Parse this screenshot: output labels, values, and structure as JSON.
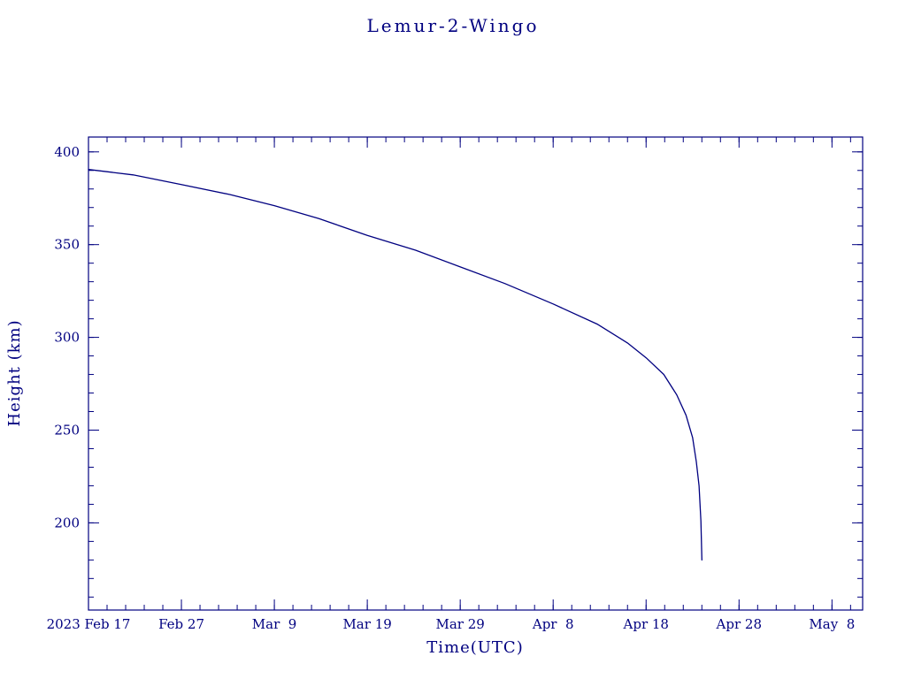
{
  "chart_data": {
    "type": "line",
    "title": "Lemur-2-Wingo",
    "xlabel": "Time(UTC)",
    "ylabel": "Height (km)",
    "line_color": "#000080",
    "axis_color": "#000080",
    "background_color": "#ffffff",
    "legend": "none",
    "grid": "off",
    "x_unit": "days since 2023 Feb 17 (UTC)",
    "xlim": [
      0,
      83.3
    ],
    "ylim": [
      153,
      408
    ],
    "x_ticks": [
      {
        "day": 0,
        "label": "2023 Feb 17"
      },
      {
        "day": 10,
        "label": "Feb 27"
      },
      {
        "day": 20,
        "label": "Mar  9"
      },
      {
        "day": 30,
        "label": "Mar 19"
      },
      {
        "day": 40,
        "label": "Mar 29"
      },
      {
        "day": 50,
        "label": "Apr  8"
      },
      {
        "day": 60,
        "label": "Apr 18"
      },
      {
        "day": 70,
        "label": "Apr 28"
      },
      {
        "day": 80,
        "label": "May  8"
      }
    ],
    "x_minor_tick_step_days": 2,
    "y_ticks": [
      200,
      250,
      300,
      350,
      400
    ],
    "y_minor_tick_step_km": 10,
    "points_day_height_km": [
      [
        0,
        390.5
      ],
      [
        4.8,
        387.6
      ],
      [
        10,
        382.4
      ],
      [
        15.2,
        377.0
      ],
      [
        20,
        371.0
      ],
      [
        24.8,
        364.0
      ],
      [
        30,
        355.0
      ],
      [
        35.2,
        347.0
      ],
      [
        40,
        338.0
      ],
      [
        44.8,
        329.0
      ],
      [
        50,
        318.0
      ],
      [
        54.8,
        307.0
      ],
      [
        58,
        297.0
      ],
      [
        60,
        289.0
      ],
      [
        61.9,
        280.0
      ],
      [
        63.3,
        269.0
      ],
      [
        64.3,
        258.0
      ],
      [
        65.0,
        246.0
      ],
      [
        65.4,
        233.0
      ],
      [
        65.7,
        220.0
      ],
      [
        65.9,
        201.0
      ],
      [
        66.0,
        180.0
      ]
    ]
  }
}
